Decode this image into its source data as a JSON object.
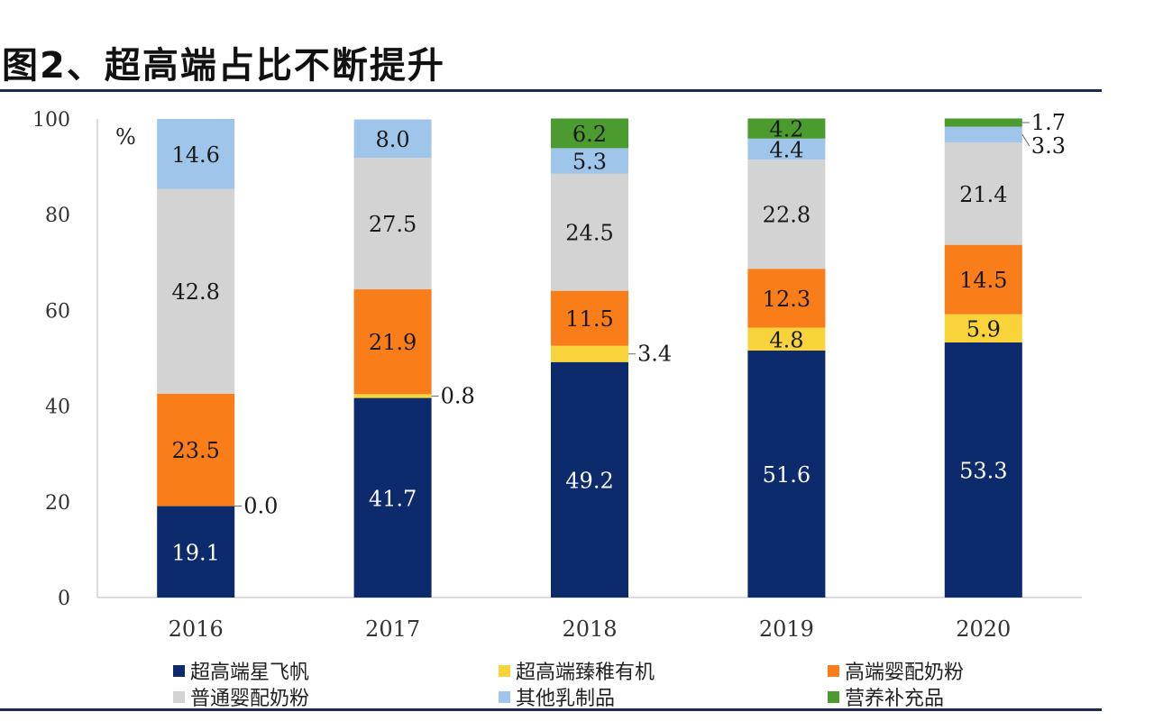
{
  "chart_data": {
    "type": "bar",
    "stacked": true,
    "title": "图2、超高端占比不断提升",
    "ylabel": "%",
    "ylim": [
      0,
      100
    ],
    "yticks": [
      0,
      20,
      40,
      60,
      80,
      100
    ],
    "categories": [
      "2016",
      "2017",
      "2018",
      "2019",
      "2020"
    ],
    "grid": false,
    "legend_position": "bottom",
    "series": [
      {
        "name": "超高端星飞帆",
        "color": "#0c2a6c",
        "label_color": "#ffffff",
        "values": [
          19.1,
          41.7,
          49.2,
          51.6,
          53.3
        ]
      },
      {
        "name": "超高端臻稚有机",
        "color": "#f8d43a",
        "label_color": "#1a1a1a",
        "values": [
          0.0,
          0.8,
          3.4,
          4.8,
          5.9
        ]
      },
      {
        "name": "高端婴配奶粉",
        "color": "#f97d19",
        "label_color": "#1a1a1a",
        "values": [
          23.5,
          21.9,
          11.5,
          12.3,
          14.5
        ]
      },
      {
        "name": "普通婴配奶粉",
        "color": "#d3d3d3",
        "label_color": "#1a1a1a",
        "values": [
          42.8,
          27.5,
          24.5,
          22.8,
          21.4
        ]
      },
      {
        "name": "其他乳制品",
        "color": "#9fc6ea",
        "label_color": "#1a1a1a",
        "values": [
          14.6,
          8.0,
          5.3,
          4.4,
          3.3
        ]
      },
      {
        "name": "营养补充品",
        "color": "#4b9b2f",
        "label_color": "#1a1a1a",
        "values": [
          null,
          null,
          6.2,
          4.2,
          1.7
        ]
      }
    ]
  }
}
